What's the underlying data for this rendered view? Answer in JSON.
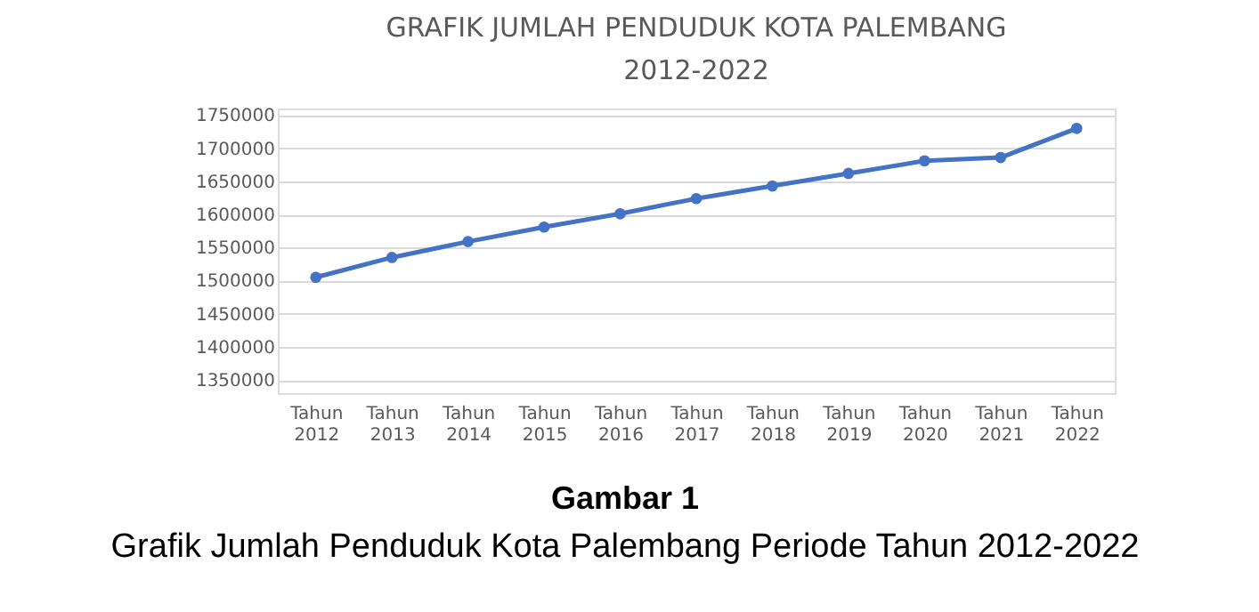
{
  "chart_data": {
    "type": "line",
    "title": "GRAFIK JUMLAH PENDUDUK KOTA PALEMBANG 2012-2022",
    "categories": [
      "Tahun 2012",
      "Tahun 2013",
      "Tahun 2014",
      "Tahun 2015",
      "Tahun 2016",
      "Tahun 2017",
      "Tahun 2018",
      "Tahun 2019",
      "Tahun 2020",
      "Tahun 2021",
      "Tahun 2022"
    ],
    "series": [
      {
        "color": "#4472c4",
        "values": [
          1505000,
          1535000,
          1559000,
          1581000,
          1601000,
          1624000,
          1643000,
          1662000,
          1681000,
          1686000,
          1730000
        ]
      }
    ],
    "ylim": [
      1330000,
      1760000
    ],
    "yticks": [
      1350000,
      1400000,
      1450000,
      1500000,
      1550000,
      1600000,
      1650000,
      1700000,
      1750000
    ],
    "grid": "y",
    "marker": "circle",
    "line_style": "solid",
    "annotations": [
      "Gambar 1",
      "Grafik Jumlah Penduduk Kota Palembang Periode Tahun 2012-2022"
    ]
  }
}
